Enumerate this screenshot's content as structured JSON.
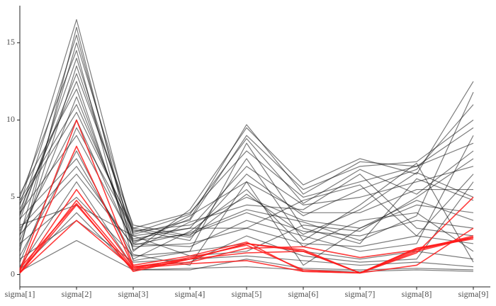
{
  "chart_data": {
    "type": "parallel",
    "categories": [
      "sigma[1]",
      "sigma[2]",
      "sigma[3]",
      "sigma[4]",
      "sigma[5]",
      "sigma[6]",
      "sigma[7]",
      "sigma[8]",
      "sigma[9]"
    ],
    "ylim": [
      -0.8,
      17.4
    ],
    "yticks": [
      0,
      5,
      10,
      15
    ],
    "series": [
      {
        "color": "#111111",
        "values": [
          0.2,
          2.2,
          0.3,
          0.4,
          0.5,
          0.3,
          0.2,
          0.3,
          0.2
        ]
      },
      {
        "color": "#111111",
        "values": [
          1.0,
          3.5,
          0.8,
          1.0,
          1.2,
          0.9,
          0.6,
          0.8,
          0.5
        ]
      },
      {
        "color": "#111111",
        "values": [
          2.0,
          5.0,
          1.2,
          1.5,
          2.0,
          1.5,
          1.0,
          1.5,
          1.0
        ]
      },
      {
        "color": "#111111",
        "values": [
          3.0,
          7.0,
          1.8,
          2.0,
          3.0,
          2.0,
          1.8,
          2.5,
          2.0
        ]
      },
      {
        "color": "#111111",
        "values": [
          4.0,
          9.0,
          2.2,
          2.6,
          4.0,
          2.8,
          2.5,
          3.5,
          3.0
        ]
      },
      {
        "color": "#111111",
        "values": [
          4.8,
          11.0,
          2.8,
          3.2,
          5.0,
          3.5,
          3.0,
          4.5,
          4.0
        ]
      },
      {
        "color": "#111111",
        "values": [
          5.2,
          12.0,
          2.0,
          3.8,
          6.0,
          4.0,
          4.0,
          5.5,
          5.5
        ]
      },
      {
        "color": "#111111",
        "values": [
          3.5,
          14.0,
          2.5,
          3.0,
          7.0,
          4.5,
          5.0,
          6.0,
          7.0
        ]
      },
      {
        "color": "#111111",
        "values": [
          2.5,
          15.0,
          3.0,
          4.0,
          8.0,
          5.0,
          6.0,
          7.0,
          8.5
        ]
      },
      {
        "color": "#111111",
        "values": [
          4.5,
          16.5,
          2.6,
          3.5,
          9.0,
          5.5,
          7.0,
          7.3,
          10.0
        ]
      },
      {
        "color": "#111111",
        "values": [
          1.5,
          16.0,
          1.5,
          4.2,
          9.5,
          5.8,
          7.5,
          6.5,
          12.5
        ]
      },
      {
        "color": "#111111",
        "values": [
          3.8,
          13.0,
          3.2,
          2.5,
          6.5,
          3.8,
          5.5,
          6.8,
          11.0
        ]
      },
      {
        "color": "#111111",
        "values": [
          0.5,
          6.0,
          0.5,
          0.8,
          2.5,
          1.2,
          0.8,
          1.0,
          6.0
        ]
      },
      {
        "color": "#111111",
        "values": [
          2.8,
          10.0,
          2.0,
          1.8,
          3.5,
          2.5,
          1.5,
          2.0,
          9.0
        ]
      },
      {
        "color": "#111111",
        "values": [
          1.2,
          8.0,
          1.0,
          2.8,
          5.5,
          1.8,
          3.5,
          4.0,
          1.5
        ]
      },
      {
        "color": "#111111",
        "values": [
          3.2,
          4.5,
          2.5,
          1.2,
          1.5,
          3.2,
          2.8,
          5.0,
          7.5
        ]
      },
      {
        "color": "#111111",
        "values": [
          4.2,
          12.5,
          1.6,
          3.4,
          4.5,
          4.2,
          6.5,
          3.0,
          2.5
        ]
      },
      {
        "color": "#111111",
        "values": [
          0.8,
          9.5,
          2.9,
          2.2,
          7.5,
          2.2,
          4.5,
          7.2,
          0.8
        ]
      },
      {
        "color": "#111111",
        "values": [
          5.0,
          14.5,
          0.9,
          1.5,
          8.5,
          3.0,
          2.0,
          6.2,
          4.8
        ]
      },
      {
        "color": "#111111",
        "values": [
          2.2,
          11.5,
          2.3,
          3.0,
          3.0,
          4.8,
          5.8,
          2.5,
          6.5
        ]
      },
      {
        "color": "#111111",
        "values": [
          3.6,
          7.5,
          1.3,
          0.6,
          6.0,
          0.6,
          3.0,
          4.8,
          3.5
        ]
      },
      {
        "color": "#111111",
        "values": [
          1.8,
          13.5,
          2.7,
          3.9,
          8.8,
          4.6,
          6.8,
          5.2,
          8.0
        ]
      },
      {
        "color": "#111111",
        "values": [
          4.6,
          10.5,
          3.0,
          2.4,
          5.2,
          2.6,
          4.2,
          6.6,
          5.0
        ]
      },
      {
        "color": "#111111",
        "values": [
          0.3,
          4.0,
          0.3,
          0.3,
          1.0,
          0.4,
          0.3,
          0.4,
          0.3
        ]
      },
      {
        "color": "#111111",
        "values": [
          2.6,
          6.5,
          1.9,
          2.7,
          4.2,
          3.4,
          2.2,
          3.8,
          11.8
        ]
      },
      {
        "color": "#111111",
        "values": [
          3.9,
          15.5,
          2.1,
          3.6,
          9.7,
          5.2,
          7.3,
          7.0,
          9.5
        ]
      },
      {
        "color": "#ff1a1a",
        "values": [
          0.1,
          4.5,
          0.3,
          1.0,
          2.0,
          1.6,
          0.1,
          1.5,
          2.4
        ]
      },
      {
        "color": "#ff1a1a",
        "values": [
          0.1,
          4.8,
          0.4,
          1.1,
          1.9,
          0.3,
          0.1,
          1.7,
          2.3
        ]
      },
      {
        "color": "#ff1a1a",
        "values": [
          0.2,
          8.3,
          0.5,
          1.0,
          1.4,
          1.5,
          0.1,
          1.6,
          2.5
        ]
      },
      {
        "color": "#ff1a1a",
        "values": [
          0.1,
          5.5,
          0.5,
          0.8,
          1.7,
          1.8,
          1.1,
          1.6,
          2.4
        ]
      },
      {
        "color": "#ff1a1a",
        "values": [
          0.3,
          10.0,
          0.6,
          1.2,
          2.1,
          0.2,
          0.1,
          1.4,
          5.0
        ]
      },
      {
        "color": "#ff1a1a",
        "values": [
          0.1,
          3.5,
          0.4,
          0.7,
          0.9,
          0.2,
          0.1,
          0.6,
          3.0
        ]
      },
      {
        "color": "#ff1a1a",
        "values": [
          0.4,
          4.6,
          0.2,
          1.0,
          2.0,
          1.5,
          0.1,
          1.7,
          2.4
        ]
      }
    ]
  }
}
